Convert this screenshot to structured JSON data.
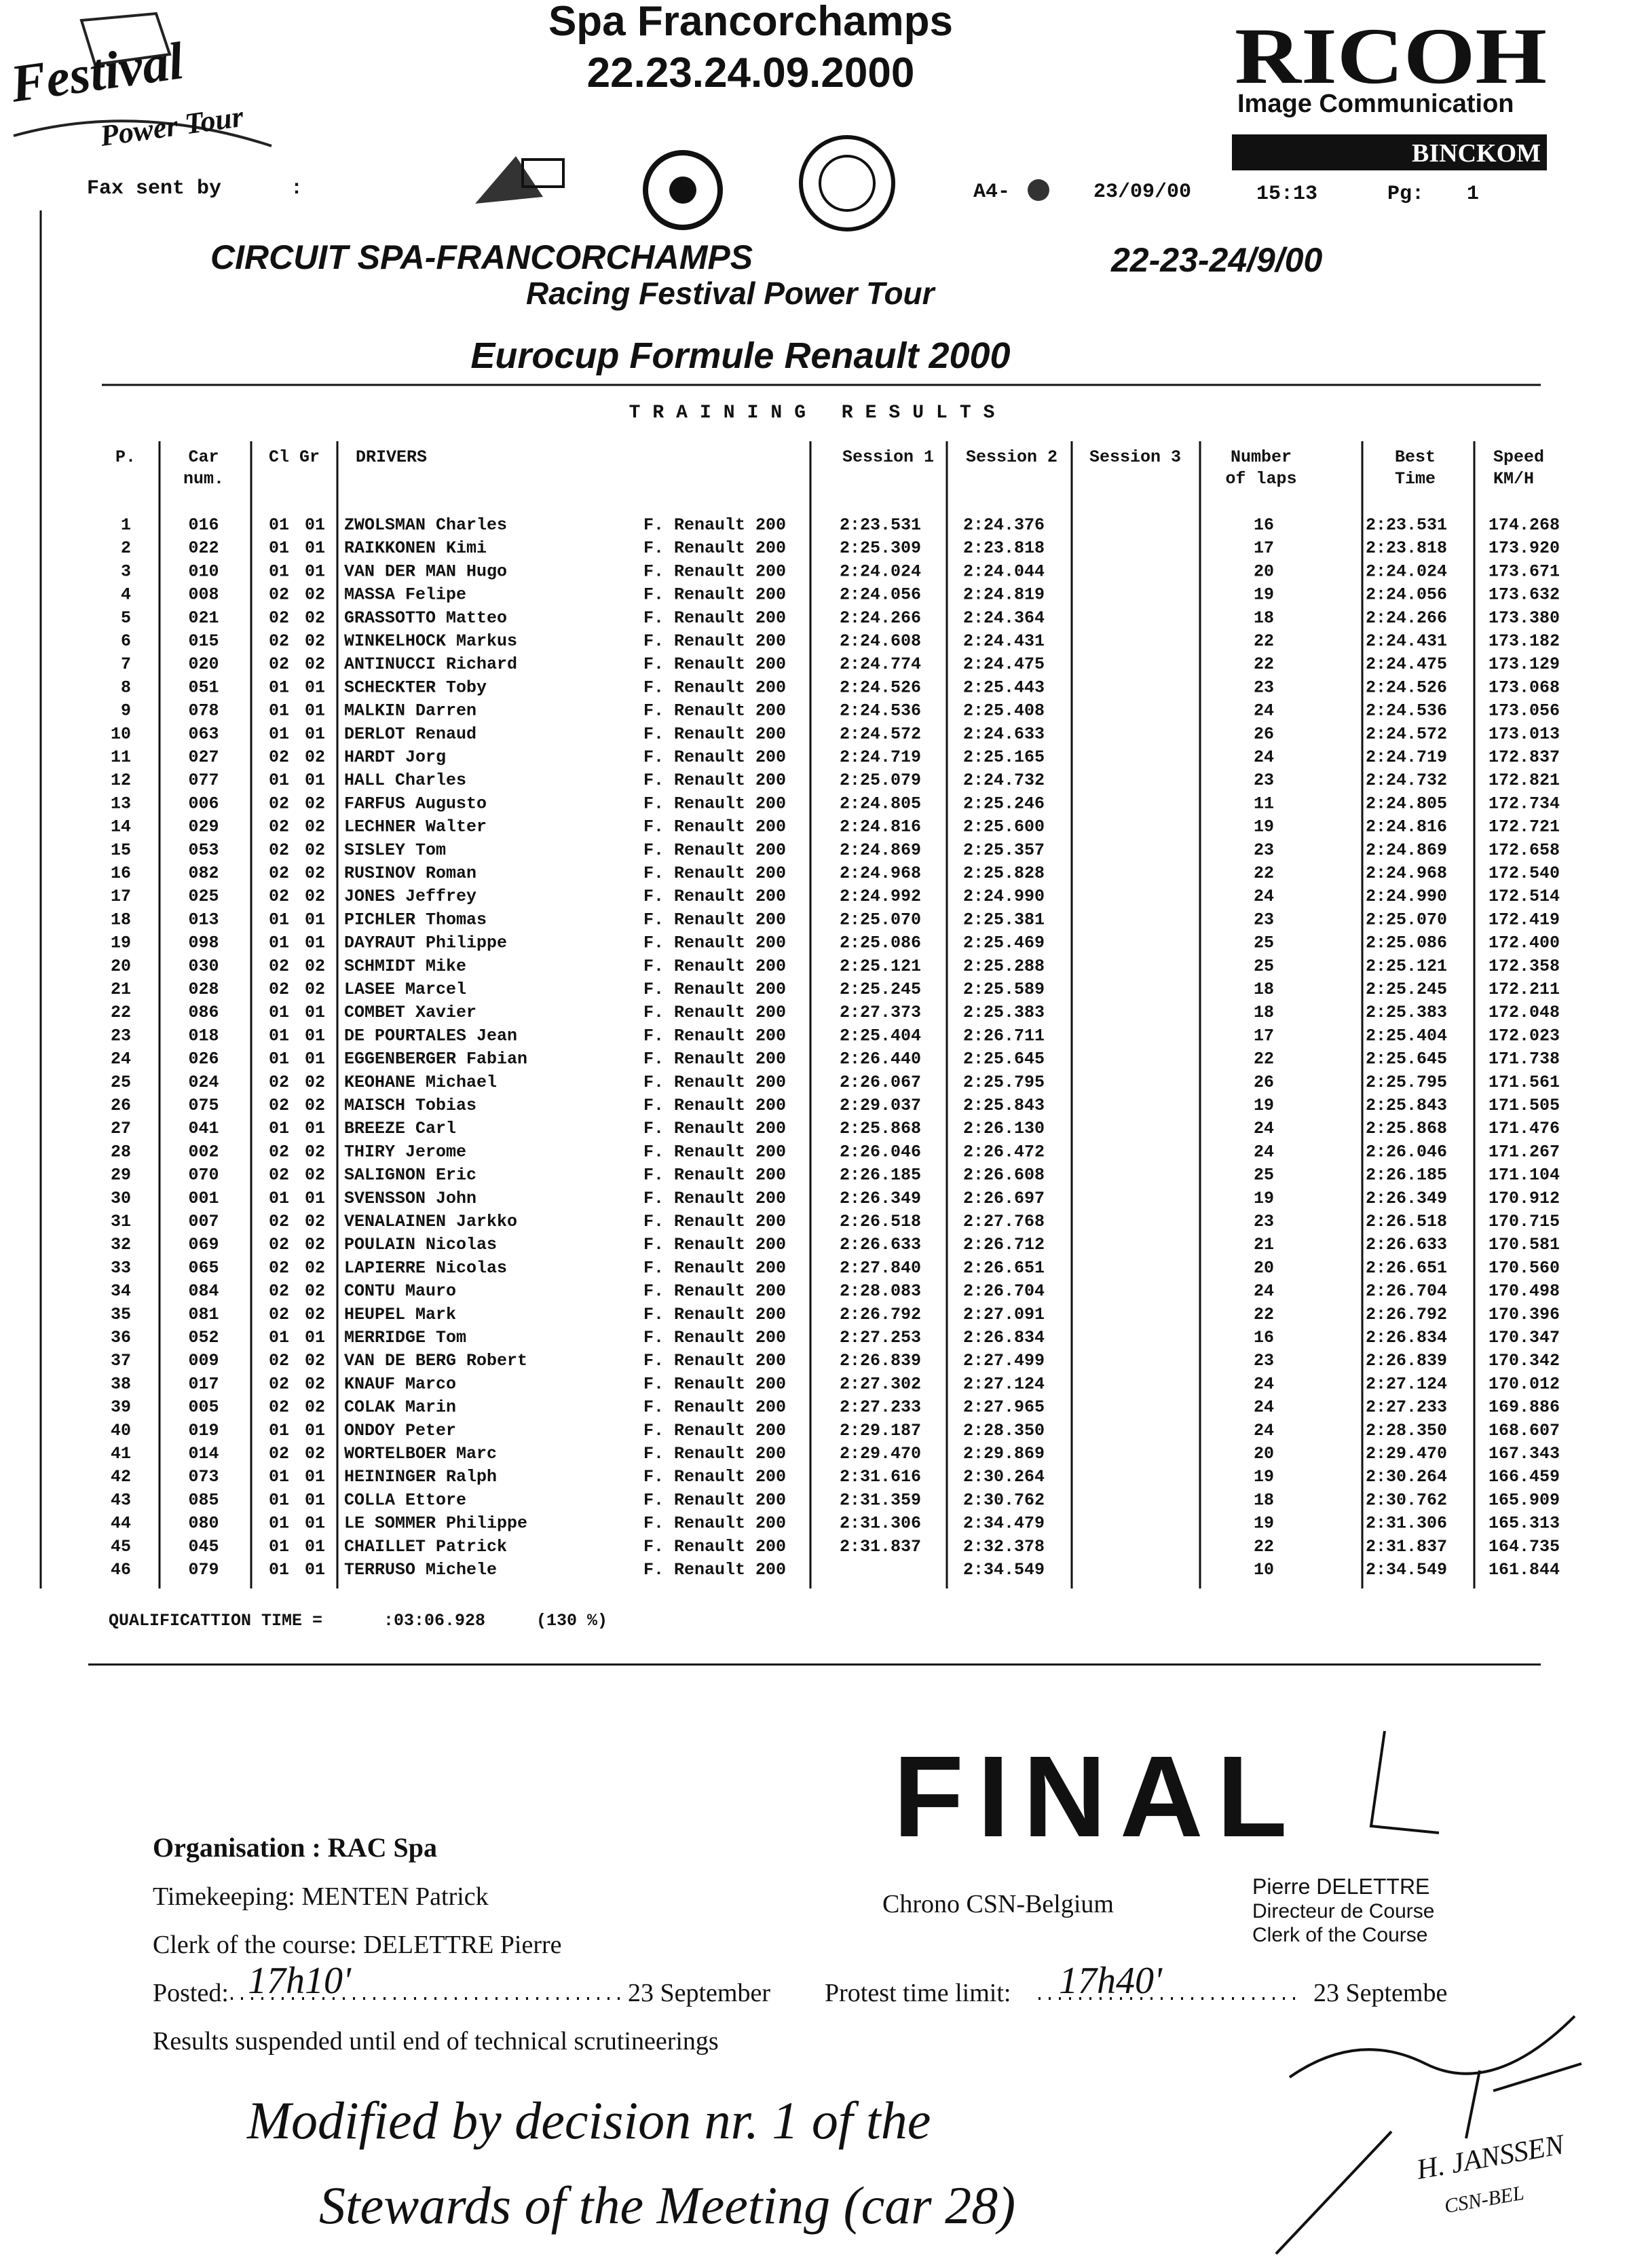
{
  "header": {
    "logo": [
      "Festival",
      "Power Tour"
    ],
    "title": "Spa Francorchamps",
    "date": "22.23.24.09.2000",
    "brand": "RICOH",
    "brand_tagline": "Image Communication",
    "brand_box": "BINCKOM"
  },
  "fax": {
    "label": "Fax sent by",
    "colon": ":",
    "format": "A4-",
    "date": "23/09/00",
    "time": "15:13",
    "page_label": "Pg:",
    "page": "1"
  },
  "event": {
    "circuit": "CIRCUIT SPA-FRANCORCHAMPS",
    "dates": "22-23-24/9/00",
    "festival": "Racing Festival Power Tour",
    "series": "Eurocup Formule Renault 2000"
  },
  "table": {
    "title": "TRAINING RESULTS",
    "columns": [
      [
        "P."
      ],
      [
        "Car",
        "num."
      ],
      [
        "Cl Gr"
      ],
      [
        "DRIVERS"
      ],
      [
        "Session 1"
      ],
      [
        "Session 2"
      ],
      [
        "Session 3"
      ],
      [
        "Number",
        "of laps"
      ],
      [
        "Best",
        "Time"
      ],
      [
        "Speed",
        "KM/H"
      ]
    ],
    "rows": [
      [
        "1",
        "016",
        "01",
        "01",
        "ZWOLSMAN Charles",
        "F. Renault 200",
        "2:23.531",
        "2:24.376",
        "16",
        "2:23.531",
        "174.268"
      ],
      [
        "2",
        "022",
        "01",
        "01",
        "RAIKKONEN Kimi",
        "F. Renault 200",
        "2:25.309",
        "2:23.818",
        "17",
        "2:23.818",
        "173.920"
      ],
      [
        "3",
        "010",
        "01",
        "01",
        "VAN DER MAN Hugo",
        "F. Renault 200",
        "2:24.024",
        "2:24.044",
        "20",
        "2:24.024",
        "173.671"
      ],
      [
        "4",
        "008",
        "02",
        "02",
        "MASSA Felipe",
        "F. Renault 200",
        "2:24.056",
        "2:24.819",
        "19",
        "2:24.056",
        "173.632"
      ],
      [
        "5",
        "021",
        "02",
        "02",
        "GRASSOTTO Matteo",
        "F. Renault 200",
        "2:24.266",
        "2:24.364",
        "18",
        "2:24.266",
        "173.380"
      ],
      [
        "6",
        "015",
        "02",
        "02",
        "WINKELHOCK Markus",
        "F. Renault 200",
        "2:24.608",
        "2:24.431",
        "22",
        "2:24.431",
        "173.182"
      ],
      [
        "7",
        "020",
        "02",
        "02",
        "ANTINUCCI Richard",
        "F. Renault 200",
        "2:24.774",
        "2:24.475",
        "22",
        "2:24.475",
        "173.129"
      ],
      [
        "8",
        "051",
        "01",
        "01",
        "SCHECKTER Toby",
        "F. Renault 200",
        "2:24.526",
        "2:25.443",
        "23",
        "2:24.526",
        "173.068"
      ],
      [
        "9",
        "078",
        "01",
        "01",
        "MALKIN Darren",
        "F. Renault 200",
        "2:24.536",
        "2:25.408",
        "24",
        "2:24.536",
        "173.056"
      ],
      [
        "10",
        "063",
        "01",
        "01",
        "DERLOT Renaud",
        "F. Renault 200",
        "2:24.572",
        "2:24.633",
        "26",
        "2:24.572",
        "173.013"
      ],
      [
        "11",
        "027",
        "02",
        "02",
        "HARDT Jorg",
        "F. Renault 200",
        "2:24.719",
        "2:25.165",
        "24",
        "2:24.719",
        "172.837"
      ],
      [
        "12",
        "077",
        "01",
        "01",
        "HALL Charles",
        "F. Renault 200",
        "2:25.079",
        "2:24.732",
        "23",
        "2:24.732",
        "172.821"
      ],
      [
        "13",
        "006",
        "02",
        "02",
        "FARFUS Augusto",
        "F. Renault 200",
        "2:24.805",
        "2:25.246",
        "11",
        "2:24.805",
        "172.734"
      ],
      [
        "14",
        "029",
        "02",
        "02",
        "LECHNER Walter",
        "F. Renault 200",
        "2:24.816",
        "2:25.600",
        "19",
        "2:24.816",
        "172.721"
      ],
      [
        "15",
        "053",
        "02",
        "02",
        "SISLEY Tom",
        "F. Renault 200",
        "2:24.869",
        "2:25.357",
        "23",
        "2:24.869",
        "172.658"
      ],
      [
        "16",
        "082",
        "02",
        "02",
        "RUSINOV Roman",
        "F. Renault 200",
        "2:24.968",
        "2:25.828",
        "22",
        "2:24.968",
        "172.540"
      ],
      [
        "17",
        "025",
        "02",
        "02",
        "JONES Jeffrey",
        "F. Renault 200",
        "2:24.992",
        "2:24.990",
        "24",
        "2:24.990",
        "172.514"
      ],
      [
        "18",
        "013",
        "01",
        "01",
        "PICHLER Thomas",
        "F. Renault 200",
        "2:25.070",
        "2:25.381",
        "23",
        "2:25.070",
        "172.419"
      ],
      [
        "19",
        "098",
        "01",
        "01",
        "DAYRAUT Philippe",
        "F. Renault 200",
        "2:25.086",
        "2:25.469",
        "25",
        "2:25.086",
        "172.400"
      ],
      [
        "20",
        "030",
        "02",
        "02",
        "SCHMIDT Mike",
        "F. Renault 200",
        "2:25.121",
        "2:25.288",
        "25",
        "2:25.121",
        "172.358"
      ],
      [
        "21",
        "028",
        "02",
        "02",
        "LASEE Marcel",
        "F. Renault 200",
        "2:25.245",
        "2:25.589",
        "18",
        "2:25.245",
        "172.211"
      ],
      [
        "22",
        "086",
        "01",
        "01",
        "COMBET Xavier",
        "F. Renault 200",
        "2:27.373",
        "2:25.383",
        "18",
        "2:25.383",
        "172.048"
      ],
      [
        "23",
        "018",
        "01",
        "01",
        "DE POURTALES Jean",
        "F. Renault 200",
        "2:25.404",
        "2:26.711",
        "17",
        "2:25.404",
        "172.023"
      ],
      [
        "24",
        "026",
        "01",
        "01",
        "EGGENBERGER Fabian",
        "F. Renault 200",
        "2:26.440",
        "2:25.645",
        "22",
        "2:25.645",
        "171.738"
      ],
      [
        "25",
        "024",
        "02",
        "02",
        "KEOHANE Michael",
        "F. Renault 200",
        "2:26.067",
        "2:25.795",
        "26",
        "2:25.795",
        "171.561"
      ],
      [
        "26",
        "075",
        "02",
        "02",
        "MAISCH Tobias",
        "F. Renault 200",
        "2:29.037",
        "2:25.843",
        "19",
        "2:25.843",
        "171.505"
      ],
      [
        "27",
        "041",
        "01",
        "01",
        "BREEZE Carl",
        "F. Renault 200",
        "2:25.868",
        "2:26.130",
        "24",
        "2:25.868",
        "171.476"
      ],
      [
        "28",
        "002",
        "02",
        "02",
        "THIRY Jerome",
        "F. Renault 200",
        "2:26.046",
        "2:26.472",
        "24",
        "2:26.046",
        "171.267"
      ],
      [
        "29",
        "070",
        "02",
        "02",
        "SALIGNON Eric",
        "F. Renault 200",
        "2:26.185",
        "2:26.608",
        "25",
        "2:26.185",
        "171.104"
      ],
      [
        "30",
        "001",
        "01",
        "01",
        "SVENSSON John",
        "F. Renault 200",
        "2:26.349",
        "2:26.697",
        "19",
        "2:26.349",
        "170.912"
      ],
      [
        "31",
        "007",
        "02",
        "02",
        "VENALAINEN Jarkko",
        "F. Renault 200",
        "2:26.518",
        "2:27.768",
        "23",
        "2:26.518",
        "170.715"
      ],
      [
        "32",
        "069",
        "02",
        "02",
        "POULAIN Nicolas",
        "F. Renault 200",
        "2:26.633",
        "2:26.712",
        "21",
        "2:26.633",
        "170.581"
      ],
      [
        "33",
        "065",
        "02",
        "02",
        "LAPIERRE Nicolas",
        "F. Renault 200",
        "2:27.840",
        "2:26.651",
        "20",
        "2:26.651",
        "170.560"
      ],
      [
        "34",
        "084",
        "02",
        "02",
        "CONTU Mauro",
        "F. Renault 200",
        "2:28.083",
        "2:26.704",
        "24",
        "2:26.704",
        "170.498"
      ],
      [
        "35",
        "081",
        "02",
        "02",
        "HEUPEL Mark",
        "F. Renault 200",
        "2:26.792",
        "2:27.091",
        "22",
        "2:26.792",
        "170.396"
      ],
      [
        "36",
        "052",
        "01",
        "01",
        "MERRIDGE Tom",
        "F. Renault 200",
        "2:27.253",
        "2:26.834",
        "16",
        "2:26.834",
        "170.347"
      ],
      [
        "37",
        "009",
        "02",
        "02",
        "VAN DE BERG Robert",
        "F. Renault 200",
        "2:26.839",
        "2:27.499",
        "23",
        "2:26.839",
        "170.342"
      ],
      [
        "38",
        "017",
        "02",
        "02",
        "KNAUF Marco",
        "F. Renault 200",
        "2:27.302",
        "2:27.124",
        "24",
        "2:27.124",
        "170.012"
      ],
      [
        "39",
        "005",
        "02",
        "02",
        "COLAK Marin",
        "F. Renault 200",
        "2:27.233",
        "2:27.965",
        "24",
        "2:27.233",
        "169.886"
      ],
      [
        "40",
        "019",
        "01",
        "01",
        "ONDOY Peter",
        "F. Renault 200",
        "2:29.187",
        "2:28.350",
        "24",
        "2:28.350",
        "168.607"
      ],
      [
        "41",
        "014",
        "02",
        "02",
        "WORTELBOER Marc",
        "F. Renault 200",
        "2:29.470",
        "2:29.869",
        "20",
        "2:29.470",
        "167.343"
      ],
      [
        "42",
        "073",
        "01",
        "01",
        "HEININGER Ralph",
        "F. Renault 200",
        "2:31.616",
        "2:30.264",
        "19",
        "2:30.264",
        "166.459"
      ],
      [
        "43",
        "085",
        "01",
        "01",
        "COLLA Ettore",
        "F. Renault 200",
        "2:31.359",
        "2:30.762",
        "18",
        "2:30.762",
        "165.909"
      ],
      [
        "44",
        "080",
        "01",
        "01",
        "LE SOMMER Philippe",
        "F. Renault 200",
        "2:31.306",
        "2:34.479",
        "19",
        "2:31.306",
        "165.313"
      ],
      [
        "45",
        "045",
        "01",
        "01",
        "CHAILLET Patrick",
        "F. Renault 200",
        "2:31.837",
        "2:32.378",
        "22",
        "2:31.837",
        "164.735"
      ],
      [
        "46",
        "079",
        "01",
        "01",
        "TERRUSO Michele",
        "F. Renault 200",
        null,
        "2:34.549",
        "10",
        "2:34.549",
        "161.844"
      ]
    ]
  },
  "qualification": {
    "label": "QUALIFICATTION TIME =",
    "time": ":03:06.928",
    "percent": "(130 %)"
  },
  "status": "FINAL",
  "officials": {
    "organisation": "Organisation : RAC Spa",
    "timekeeping": "Timekeeping: MENTEN Patrick",
    "clerk": "Clerk of the course: DELETTRE Pierre",
    "posted_label": "Posted:",
    "posted_time": "17h10'",
    "posted_date": "23 September",
    "protest_label": "Protest time limit:",
    "protest_time": "17h40'",
    "protest_date": "23 Septembe",
    "note": "Results suspended until end of technical scrutineerings",
    "chrono": "Chrono CSN-Belgium",
    "director_name": "Pierre DELETTRE",
    "director_title": "Directeur de Course",
    "director_title_en": "Clerk of the Course"
  },
  "handwritten": {
    "lines": [
      "Modified by decision nr. 1 of the",
      "Stewards of the Meeting (car 28)"
    ],
    "signature": "H. JANSSEN",
    "signature_org": "CSN-BEL"
  }
}
